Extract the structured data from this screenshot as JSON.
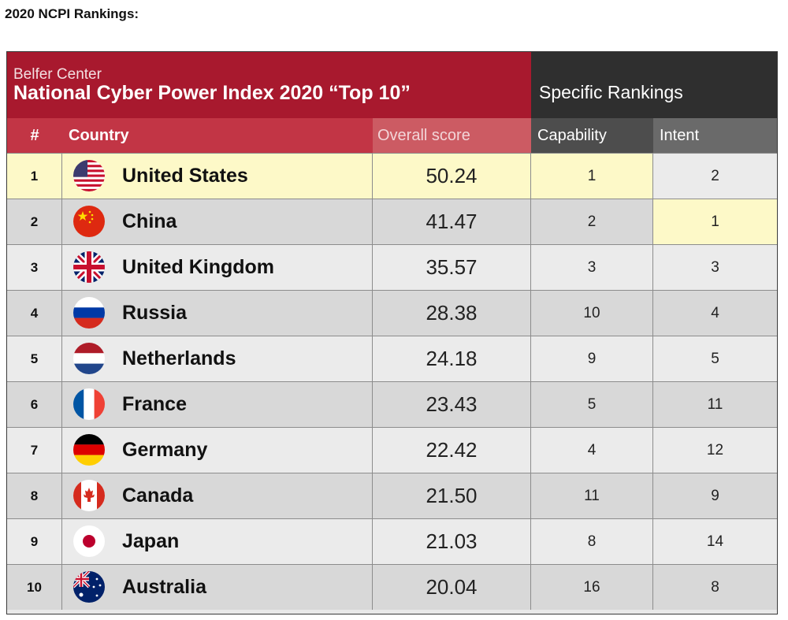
{
  "heading": "2020 NCPI Rankings:",
  "table": {
    "subtitle": "Belfer Center",
    "title": "National Cyber Power Index 2020 “Top 10”",
    "specific_header": "Specific Rankings",
    "columns": {
      "rank": "#",
      "country": "Country",
      "score": "Overall score",
      "capability": "Capability",
      "intent": "Intent"
    },
    "rows": [
      {
        "rank": "1",
        "country": "United States",
        "score": "50.24",
        "capability": "1",
        "intent": "2",
        "flag": "us-flag-icon"
      },
      {
        "rank": "2",
        "country": "China",
        "score": "41.47",
        "capability": "2",
        "intent": "1",
        "flag": "china-flag-icon"
      },
      {
        "rank": "3",
        "country": "United Kingdom",
        "score": "35.57",
        "capability": "3",
        "intent": "3",
        "flag": "uk-flag-icon"
      },
      {
        "rank": "4",
        "country": "Russia",
        "score": "28.38",
        "capability": "10",
        "intent": "4",
        "flag": "russia-flag-icon"
      },
      {
        "rank": "5",
        "country": "Netherlands",
        "score": "24.18",
        "capability": "9",
        "intent": "5",
        "flag": "netherlands-flag-icon"
      },
      {
        "rank": "6",
        "country": "France",
        "score": "23.43",
        "capability": "5",
        "intent": "11",
        "flag": "france-flag-icon"
      },
      {
        "rank": "7",
        "country": "Germany",
        "score": "22.42",
        "capability": "4",
        "intent": "12",
        "flag": "germany-flag-icon"
      },
      {
        "rank": "8",
        "country": "Canada",
        "score": "21.50",
        "capability": "11",
        "intent": "9",
        "flag": "canada-flag-icon"
      },
      {
        "rank": "9",
        "country": "Japan",
        "score": "21.03",
        "capability": "8",
        "intent": "14",
        "flag": "japan-flag-icon"
      },
      {
        "rank": "10",
        "country": "Australia",
        "score": "20.04",
        "capability": "16",
        "intent": "8",
        "flag": "australia-flag-icon"
      }
    ]
  },
  "colors": {
    "header_red": "#a8192e",
    "header_dark": "#2f2f2f",
    "highlight": "#fdf9c8"
  }
}
